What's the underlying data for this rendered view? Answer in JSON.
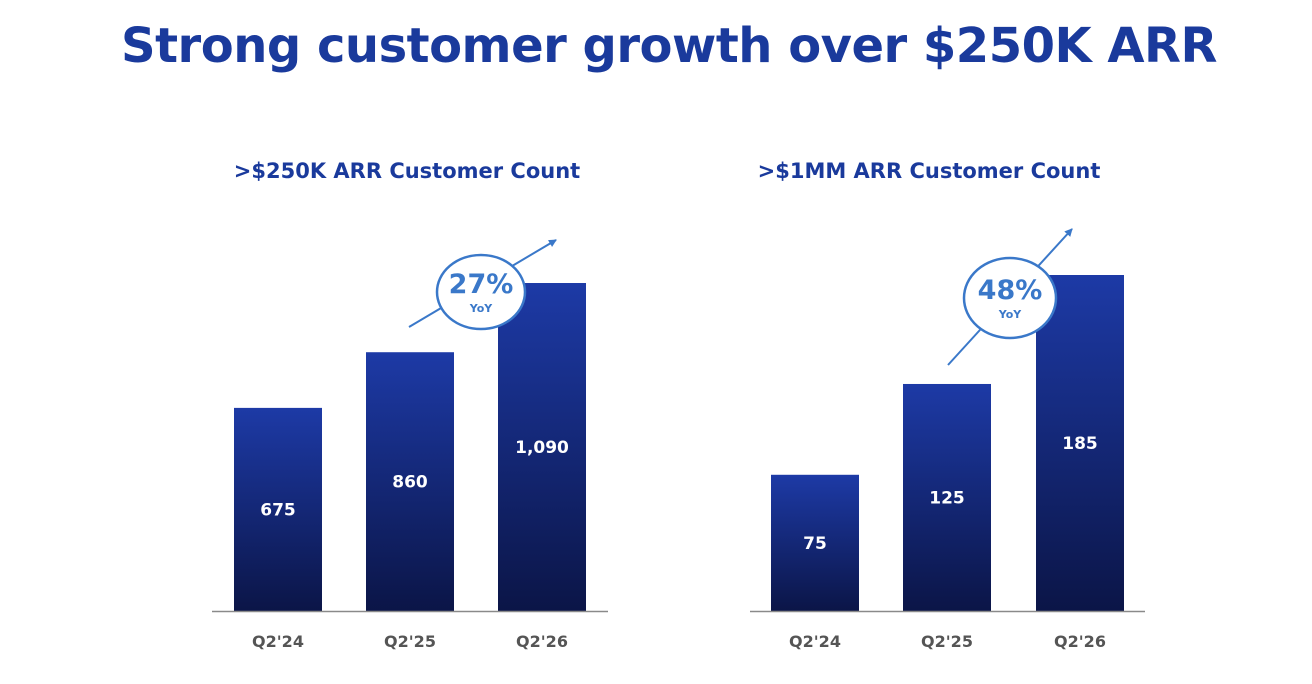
{
  "page": {
    "title": "Strong customer growth over $250K ARR"
  },
  "colors": {
    "title": "#1a3a9c",
    "bar_top": "#1d3aa6",
    "bar_bottom": "#0b1547",
    "callout": "#3a78c9",
    "axis": "#8a8a8a",
    "tick": "#555555",
    "label": "#ffffff"
  },
  "chart_data": [
    {
      "type": "bar",
      "title": ">$250K ARR Customer Count",
      "categories": [
        "Q2'24",
        "Q2'25",
        "Q2'26"
      ],
      "values": [
        675,
        860,
        1090
      ],
      "value_labels": [
        "675",
        "860",
        "1,090"
      ],
      "ylim": [
        0,
        1100
      ],
      "annotation": {
        "value": "27%",
        "label": "YoY"
      }
    },
    {
      "type": "bar",
      "title": ">$1MM ARR Customer Count",
      "categories": [
        "Q2'24",
        "Q2'25",
        "Q2'26"
      ],
      "values": [
        75,
        125,
        185
      ],
      "value_labels": [
        "75",
        "125",
        "185"
      ],
      "ylim": [
        0,
        185
      ],
      "annotation": {
        "value": "48%",
        "label": "YoY"
      }
    }
  ]
}
